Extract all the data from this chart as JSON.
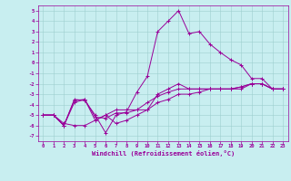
{
  "xlabel": "Windchill (Refroidissement éolien,°C)",
  "ylabel": "",
  "bg_color": "#c8eef0",
  "grid_color": "#9ecece",
  "line_color": "#990099",
  "spine_color": "#990099",
  "xlim": [
    -0.5,
    23.5
  ],
  "ylim": [
    -7.5,
    5.5
  ],
  "xticks": [
    0,
    1,
    2,
    3,
    4,
    5,
    6,
    7,
    8,
    9,
    10,
    11,
    12,
    13,
    14,
    15,
    16,
    17,
    18,
    19,
    20,
    21,
    22,
    23
  ],
  "yticks": [
    -7,
    -6,
    -5,
    -4,
    -3,
    -2,
    -1,
    0,
    1,
    2,
    3,
    4,
    5
  ],
  "line1_x": [
    0,
    1,
    2,
    3,
    4,
    5,
    6,
    7,
    8,
    9,
    10,
    11,
    12,
    13,
    14,
    15,
    16,
    17,
    18,
    19,
    20,
    21,
    22,
    23
  ],
  "line1_y": [
    -5,
    -5,
    -6,
    -3.5,
    -3.6,
    -5.0,
    -6.7,
    -5,
    -4.7,
    -2.8,
    -1.3,
    3,
    4,
    5,
    2.8,
    3,
    1.8,
    1,
    0.3,
    -0.2,
    -1.5,
    -1.5,
    -2.5,
    -2.5
  ],
  "line2_x": [
    0,
    1,
    2,
    3,
    4,
    5,
    6,
    7,
    8,
    9,
    10,
    11,
    12,
    13,
    14,
    15,
    16,
    17,
    18,
    19,
    20,
    21,
    22,
    23
  ],
  "line2_y": [
    -5,
    -5,
    -5.8,
    -6.0,
    -6.0,
    -5.5,
    -5,
    -5.8,
    -5.5,
    -5,
    -4.5,
    -3,
    -2.5,
    -2,
    -2.5,
    -2.5,
    -2.5,
    -2.5,
    -2.5,
    -2.5,
    -2,
    -2,
    -2.5,
    -2.5
  ],
  "line3_x": [
    0,
    1,
    2,
    3,
    4,
    5,
    6,
    7,
    8,
    9,
    10,
    11,
    12,
    13,
    14,
    15,
    16,
    17,
    18,
    19,
    20,
    21,
    22,
    23
  ],
  "line3_y": [
    -5,
    -5,
    -6.0,
    -3.6,
    -3.5,
    -5.5,
    -5,
    -4.5,
    -4.5,
    -4.5,
    -3.8,
    -3.2,
    -2.8,
    -2.5,
    -2.5,
    -2.5,
    -2.5,
    -2.5,
    -2.5,
    -2.3,
    -2,
    -2,
    -2.5,
    -2.5
  ],
  "line4_x": [
    0,
    1,
    2,
    3,
    4,
    5,
    6,
    7,
    8,
    9,
    10,
    11,
    12,
    13,
    14,
    15,
    16,
    17,
    18,
    19,
    20,
    21,
    22,
    23
  ],
  "line4_y": [
    -5,
    -5,
    -6.0,
    -3.8,
    -3.5,
    -5.2,
    -5.3,
    -4.8,
    -4.8,
    -4.5,
    -4.5,
    -3.8,
    -3.5,
    -3,
    -3,
    -2.8,
    -2.5,
    -2.5,
    -2.5,
    -2.3,
    -2,
    -2,
    -2.5,
    -2.5
  ]
}
